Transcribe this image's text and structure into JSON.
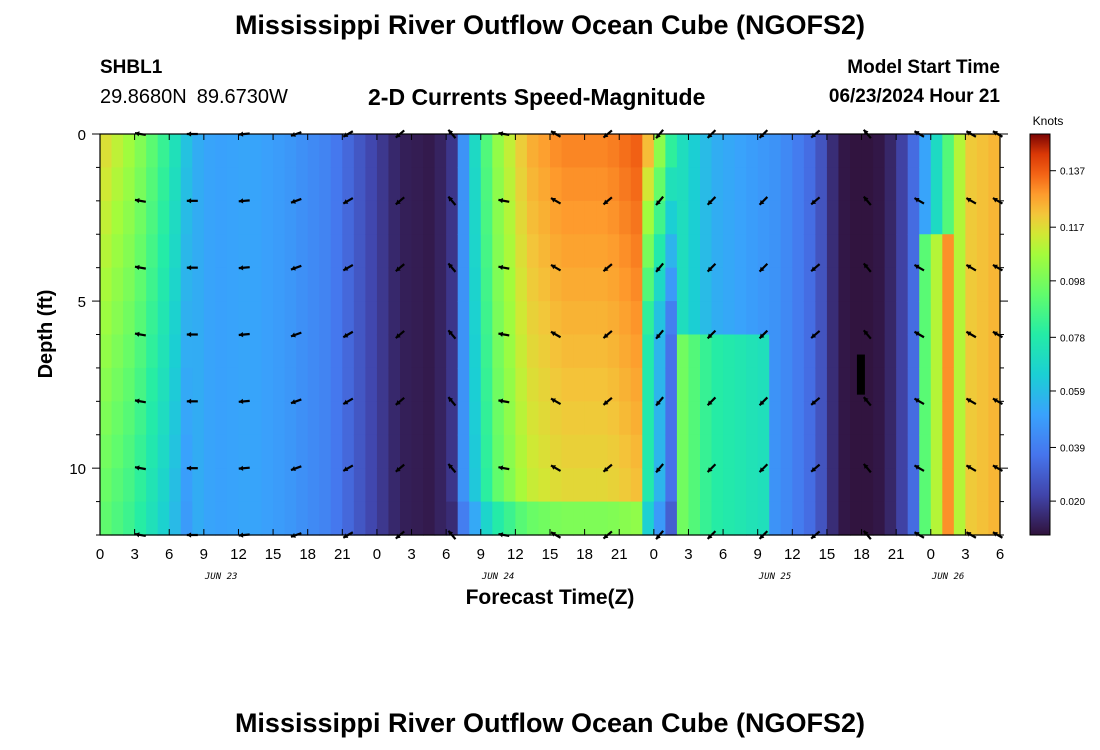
{
  "page": {
    "title_top": "Mississippi River Outflow Ocean Cube (NGOFS2)",
    "title_bottom": "Mississippi River Outflow Ocean Cube (NGOFS2)"
  },
  "station": {
    "id": "SHBL1",
    "lat": "29.8680N",
    "lon": "89.6730W"
  },
  "model_start": {
    "label": "Model Start Time",
    "value": "06/23/2024 Hour 21"
  },
  "chart_data": {
    "type": "heatmap",
    "title": "2-D Currents Speed-Magnitude",
    "xlabel": "Forecast Time(Z)",
    "ylabel": "Depth (ft)",
    "colorbar_label": "Knots",
    "colorbar_ticks": [
      "0.137",
      "0.117",
      "0.098",
      "0.078",
      "0.059",
      "0.039",
      "0.020"
    ],
    "colorbar_tick_values": [
      0.137,
      0.117,
      0.098,
      0.078,
      0.059,
      0.039,
      0.02
    ],
    "color_range": [
      0.008,
      0.15
    ],
    "x_range_hours": [
      0,
      78
    ],
    "x_tick_labels": [
      "0",
      "3",
      "6",
      "9",
      "12",
      "15",
      "18",
      "21",
      "0",
      "3",
      "6",
      "9",
      "12",
      "15",
      "18",
      "21",
      "0",
      "3",
      "6",
      "9",
      "12",
      "15",
      "18",
      "21",
      "0",
      "3",
      "6"
    ],
    "date_labels": [
      {
        "label": "JUN 23",
        "at_hour": 10.5
      },
      {
        "label": "JUN 24",
        "at_hour": 34.5
      },
      {
        "label": "JUN 25",
        "at_hour": 58.5
      },
      {
        "label": "JUN 26",
        "at_hour": 73.5
      }
    ],
    "y_range_ft": [
      0,
      12
    ],
    "y_ticks": [
      0,
      5,
      10
    ],
    "depth_levels_ft": [
      0,
      1,
      2,
      3,
      4,
      5,
      6,
      7,
      8,
      9,
      10,
      11,
      12
    ],
    "speed_profile_by_hour": [
      [
        0,
        0.12
      ],
      [
        3,
        0.105
      ],
      [
        6,
        0.08
      ],
      [
        8,
        0.055
      ],
      [
        10,
        0.05
      ],
      [
        13,
        0.052
      ],
      [
        16,
        0.048
      ],
      [
        20,
        0.04
      ],
      [
        23,
        0.025
      ],
      [
        26,
        0.012
      ],
      [
        29,
        0.01
      ],
      [
        30.5,
        0.018
      ],
      [
        32,
        0.06
      ],
      [
        34,
        0.1
      ],
      [
        37,
        0.125
      ],
      [
        40,
        0.132
      ],
      [
        44,
        0.132
      ],
      [
        47,
        0.138
      ],
      [
        50,
        0.075
      ],
      [
        53,
        0.055
      ],
      [
        56,
        0.05
      ],
      [
        59,
        0.045
      ],
      [
        62,
        0.032
      ],
      [
        64,
        0.01
      ],
      [
        66,
        0.008
      ],
      [
        68,
        0.01
      ],
      [
        70,
        0.025
      ],
      [
        72,
        0.06
      ],
      [
        75,
        0.12
      ],
      [
        78,
        0.125
      ]
    ],
    "vectors": {
      "times_hours": [
        3.5,
        8,
        12.5,
        17,
        21.5,
        26,
        30.5,
        35,
        39.5,
        44,
        48.5,
        53,
        57.5,
        62,
        66.5,
        71,
        75.5,
        77.8
      ],
      "depths_ft": [
        0,
        2,
        4,
        6,
        8,
        10,
        12
      ],
      "direction_deg_by_time": [
        280,
        270,
        265,
        250,
        240,
        230,
        320,
        280,
        300,
        230,
        220,
        225,
        225,
        230,
        320,
        300,
        300,
        300
      ]
    }
  }
}
